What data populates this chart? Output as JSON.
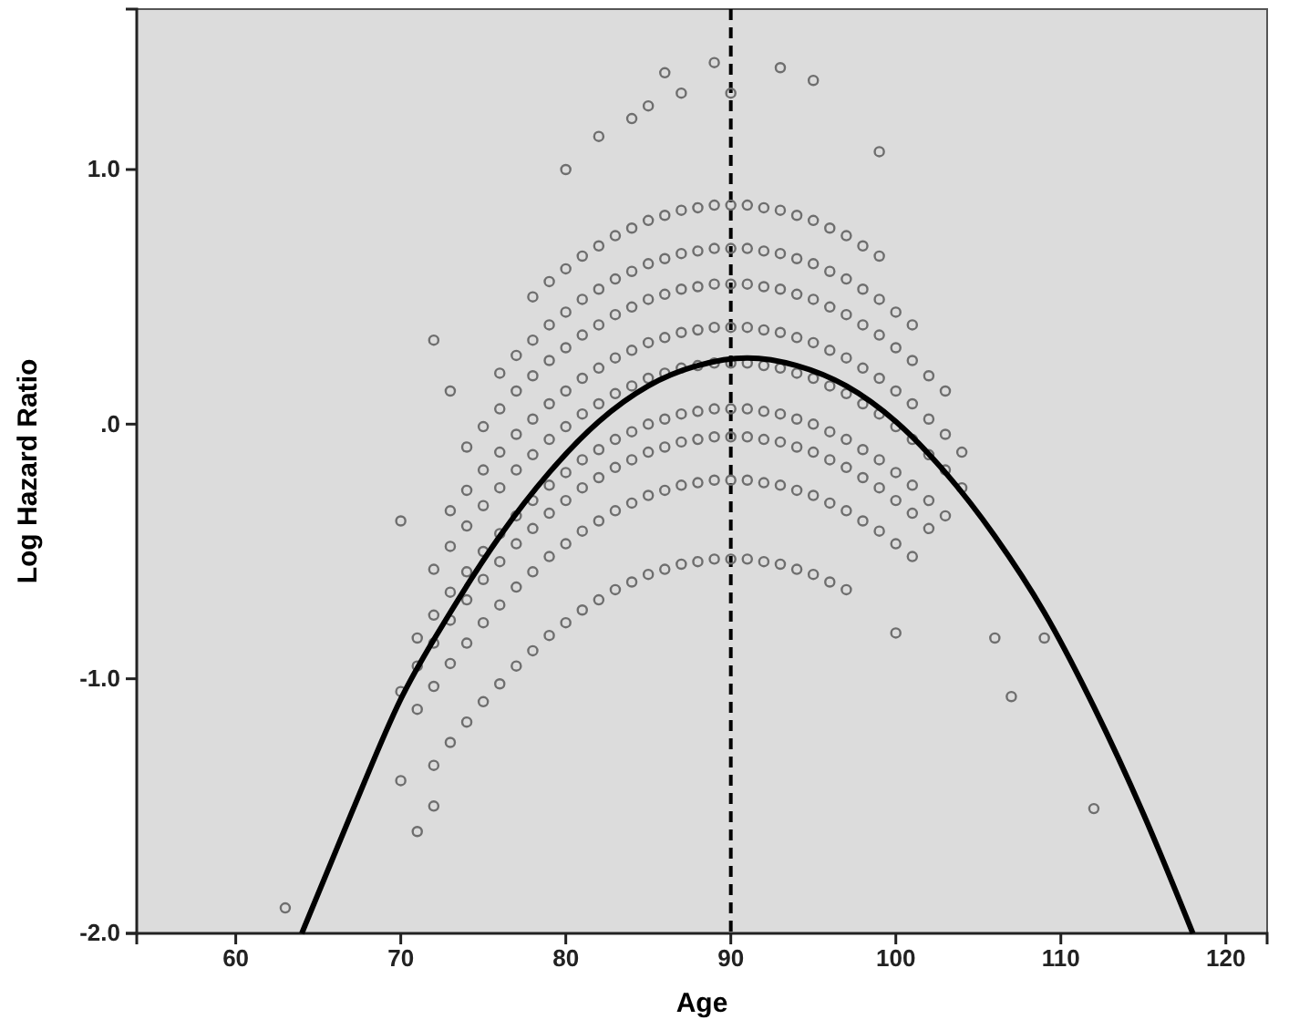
{
  "chart_data": {
    "type": "scatter",
    "xlabel": "Age",
    "ylabel": "Log Hazard Ratio",
    "xlim": [
      54,
      122.5
    ],
    "ylim": [
      -2,
      1.63
    ],
    "xticks": [
      60,
      70,
      80,
      90,
      100,
      110,
      120
    ],
    "yticks": [
      {
        "value": 1,
        "label": "1.0"
      },
      {
        "value": 0,
        "label": ".0"
      },
      {
        "value": -1,
        "label": "-1.0"
      },
      {
        "value": -2,
        "label": "-2.0"
      }
    ],
    "grid": false,
    "ref_lines": [
      {
        "axis": "x",
        "value": 90,
        "color": "#000000",
        "line_style": "dashed"
      }
    ],
    "series": [
      {
        "marker": "circle",
        "color": "#6e6e6e",
        "x": [
          78,
          79,
          80,
          81,
          82,
          83,
          84,
          85,
          86,
          87,
          88,
          89,
          90,
          91,
          92,
          93,
          94,
          95,
          96,
          97,
          98,
          99,
          76,
          77,
          78,
          79,
          80,
          81,
          82,
          83,
          84,
          85,
          86,
          87,
          88,
          89,
          90,
          91,
          92,
          93,
          94,
          95,
          96,
          97,
          98,
          99,
          100,
          101,
          74,
          75,
          76,
          77,
          78,
          79,
          80,
          81,
          82,
          83,
          84,
          85,
          86,
          87,
          88,
          89,
          90,
          91,
          92,
          93,
          94,
          95,
          96,
          97,
          98,
          99,
          100,
          101,
          102,
          103,
          73,
          74,
          75,
          76,
          77,
          78,
          79,
          80,
          81,
          82,
          83,
          84,
          85,
          86,
          87,
          88,
          89,
          90,
          91,
          92,
          93,
          94,
          95,
          96,
          97,
          98,
          99,
          100,
          101,
          102,
          103,
          104,
          72,
          73,
          74,
          75,
          76,
          77,
          78,
          79,
          80,
          81,
          82,
          83,
          84,
          85,
          86,
          87,
          88,
          89,
          90,
          91,
          92,
          93,
          94,
          95,
          96,
          97,
          98,
          99,
          100,
          101,
          102,
          103,
          104,
          71,
          72,
          73,
          74,
          75,
          76,
          77,
          78,
          79,
          80,
          81,
          82,
          83,
          84,
          85,
          86,
          87,
          88,
          89,
          90,
          91,
          92,
          93,
          94,
          95,
          96,
          97,
          98,
          99,
          100,
          101,
          102,
          103,
          70,
          71,
          72,
          73,
          74,
          75,
          76,
          77,
          78,
          79,
          80,
          81,
          82,
          83,
          84,
          85,
          86,
          87,
          88,
          89,
          90,
          91,
          92,
          93,
          94,
          95,
          96,
          97,
          98,
          99,
          100,
          101,
          102,
          71,
          72,
          73,
          74,
          75,
          76,
          77,
          78,
          79,
          80,
          81,
          82,
          83,
          84,
          85,
          86,
          87,
          88,
          89,
          90,
          91,
          92,
          93,
          94,
          95,
          96,
          97,
          98,
          99,
          100,
          101,
          72,
          73,
          74,
          75,
          76,
          77,
          78,
          79,
          80,
          81,
          82,
          83,
          84,
          85,
          86,
          87,
          88,
          89,
          90,
          91,
          92,
          93,
          94,
          95,
          96,
          97,
          63,
          106,
          107,
          109,
          112,
          80,
          82,
          84,
          85,
          86,
          87,
          89,
          90,
          93,
          95,
          99,
          71,
          72,
          70,
          70,
          72,
          73,
          100
        ],
        "values": [
          0.5,
          0.56,
          0.61,
          0.66,
          0.7,
          0.74,
          0.77,
          0.8,
          0.82,
          0.84,
          0.85,
          0.86,
          0.86,
          0.86,
          0.85,
          0.84,
          0.82,
          0.8,
          0.77,
          0.74,
          0.7,
          0.66,
          0.2,
          0.27,
          0.33,
          0.39,
          0.44,
          0.49,
          0.53,
          0.57,
          0.6,
          0.63,
          0.65,
          0.67,
          0.68,
          0.69,
          0.69,
          0.69,
          0.68,
          0.67,
          0.65,
          0.63,
          0.6,
          0.57,
          0.53,
          0.49,
          0.44,
          0.39,
          -0.09,
          -0.01,
          0.06,
          0.13,
          0.19,
          0.25,
          0.3,
          0.35,
          0.39,
          0.43,
          0.46,
          0.49,
          0.51,
          0.53,
          0.54,
          0.55,
          0.55,
          0.55,
          0.54,
          0.53,
          0.51,
          0.49,
          0.46,
          0.43,
          0.39,
          0.35,
          0.3,
          0.25,
          0.19,
          0.13,
          -0.34,
          -0.26,
          -0.18,
          -0.11,
          -0.04,
          0.02,
          0.08,
          0.13,
          0.18,
          0.22,
          0.26,
          0.29,
          0.32,
          0.34,
          0.36,
          0.37,
          0.38,
          0.38,
          0.38,
          0.37,
          0.36,
          0.34,
          0.32,
          0.29,
          0.26,
          0.22,
          0.18,
          0.13,
          0.08,
          0.02,
          -0.04,
          -0.11,
          -0.57,
          -0.48,
          -0.4,
          -0.32,
          -0.25,
          -0.18,
          -0.12,
          -0.06,
          -0.01,
          0.04,
          0.08,
          0.12,
          0.15,
          0.18,
          0.2,
          0.22,
          0.23,
          0.24,
          0.24,
          0.24,
          0.23,
          0.22,
          0.2,
          0.18,
          0.15,
          0.12,
          0.08,
          0.04,
          -0.01,
          -0.06,
          -0.12,
          -0.18,
          -0.25,
          -0.84,
          -0.75,
          -0.66,
          -0.58,
          -0.5,
          -0.43,
          -0.36,
          -0.3,
          -0.24,
          -0.19,
          -0.14,
          -0.1,
          -0.06,
          -0.03,
          0.0,
          0.02,
          0.04,
          0.05,
          0.06,
          0.06,
          0.06,
          0.05,
          0.04,
          0.02,
          0.0,
          -0.03,
          -0.06,
          -0.1,
          -0.14,
          -0.19,
          -0.24,
          -0.3,
          -0.36,
          -1.05,
          -0.95,
          -0.86,
          -0.77,
          -0.69,
          -0.61,
          -0.54,
          -0.47,
          -0.41,
          -0.35,
          -0.3,
          -0.25,
          -0.21,
          -0.17,
          -0.14,
          -0.11,
          -0.09,
          -0.07,
          -0.06,
          -0.05,
          -0.05,
          -0.05,
          -0.06,
          -0.07,
          -0.09,
          -0.11,
          -0.14,
          -0.17,
          -0.21,
          -0.25,
          -0.3,
          -0.35,
          -0.41,
          -1.12,
          -1.03,
          -0.94,
          -0.86,
          -0.78,
          -0.71,
          -0.64,
          -0.58,
          -0.52,
          -0.47,
          -0.42,
          -0.38,
          -0.34,
          -0.31,
          -0.28,
          -0.26,
          -0.24,
          -0.23,
          -0.22,
          -0.22,
          -0.22,
          -0.23,
          -0.24,
          -0.26,
          -0.28,
          -0.31,
          -0.34,
          -0.38,
          -0.42,
          -0.47,
          -0.52,
          -1.34,
          -1.25,
          -1.17,
          -1.09,
          -1.02,
          -0.95,
          -0.89,
          -0.83,
          -0.78,
          -0.73,
          -0.69,
          -0.65,
          -0.62,
          -0.59,
          -0.57,
          -0.55,
          -0.54,
          -0.53,
          -0.53,
          -0.53,
          -0.54,
          -0.55,
          -0.57,
          -0.59,
          -0.62,
          -0.65,
          -1.9,
          -0.84,
          -1.07,
          -0.84,
          -1.51,
          1.0,
          1.13,
          1.2,
          1.25,
          1.38,
          1.3,
          1.42,
          1.3,
          1.4,
          1.35,
          1.07,
          -1.6,
          -1.5,
          -1.4,
          -0.38,
          0.33,
          0.13,
          -0.82
        ]
      },
      {
        "type": "line",
        "marker": "none",
        "color": "#000000",
        "x": [
          64,
          67,
          70,
          73,
          76,
          79,
          82,
          85,
          88,
          91,
          94,
          97,
          100,
          103,
          106,
          109,
          112,
          115,
          118
        ],
        "values": [
          -2.0,
          -1.53,
          -1.08,
          -0.74,
          -0.44,
          -0.19,
          0.01,
          0.15,
          0.23,
          0.26,
          0.23,
          0.15,
          0.01,
          -0.19,
          -0.44,
          -0.74,
          -1.11,
          -1.53,
          -2.0
        ]
      }
    ]
  }
}
